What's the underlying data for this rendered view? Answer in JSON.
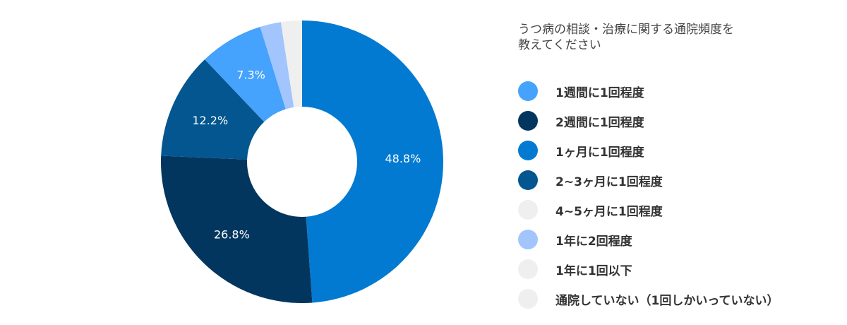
{
  "chart_data": {
    "type": "pie",
    "variant": "donut",
    "title": "うつ病の相談・治療に関する通院頻度を教えてください",
    "title_lines": [
      "うつ病の相談・治療に関する通院頻度を",
      "教えてください"
    ],
    "legend_position": "right",
    "categories": [
      "1週間に1回程度",
      "2週間に1回程度",
      "1ヶ月に1回程度",
      "2~3ヶ月に1回程度",
      "4~5ヶ月に1回程度",
      "1年に2回程度",
      "1年に1回以下",
      "通院していない（1回しかいっていない）"
    ],
    "values": [
      7.3,
      26.8,
      48.8,
      12.2,
      0,
      2.4,
      0,
      2.4
    ],
    "colors": [
      "#45a2fd",
      "#03365f",
      "#037ad2",
      "#03568f",
      "#efefef",
      "#a1c5fc",
      "#efefef",
      "#efefef"
    ],
    "draw_order": [
      2,
      1,
      3,
      0,
      5,
      7
    ],
    "data_labels": [
      "7.3%",
      "26.8%",
      "48.8%",
      "12.2%",
      "",
      "",
      "",
      ""
    ]
  },
  "legend": {
    "items": [
      {
        "label": "1週間に1回程度",
        "color": "#45a2fd"
      },
      {
        "label": "2週間に1回程度",
        "color": "#03365f"
      },
      {
        "label": "1ヶ月に1回程度",
        "color": "#037ad2"
      },
      {
        "label": "2~3ヶ月に1回程度",
        "color": "#03568f"
      },
      {
        "label": "4~5ヶ月に1回程度",
        "color": "#efefef"
      },
      {
        "label": "1年に2回程度",
        "color": "#a1c5fc"
      },
      {
        "label": "1年に1回以下",
        "color": "#efefef"
      },
      {
        "label": "通院していない（1回しかいっていない）",
        "color": "#efefef"
      }
    ]
  }
}
